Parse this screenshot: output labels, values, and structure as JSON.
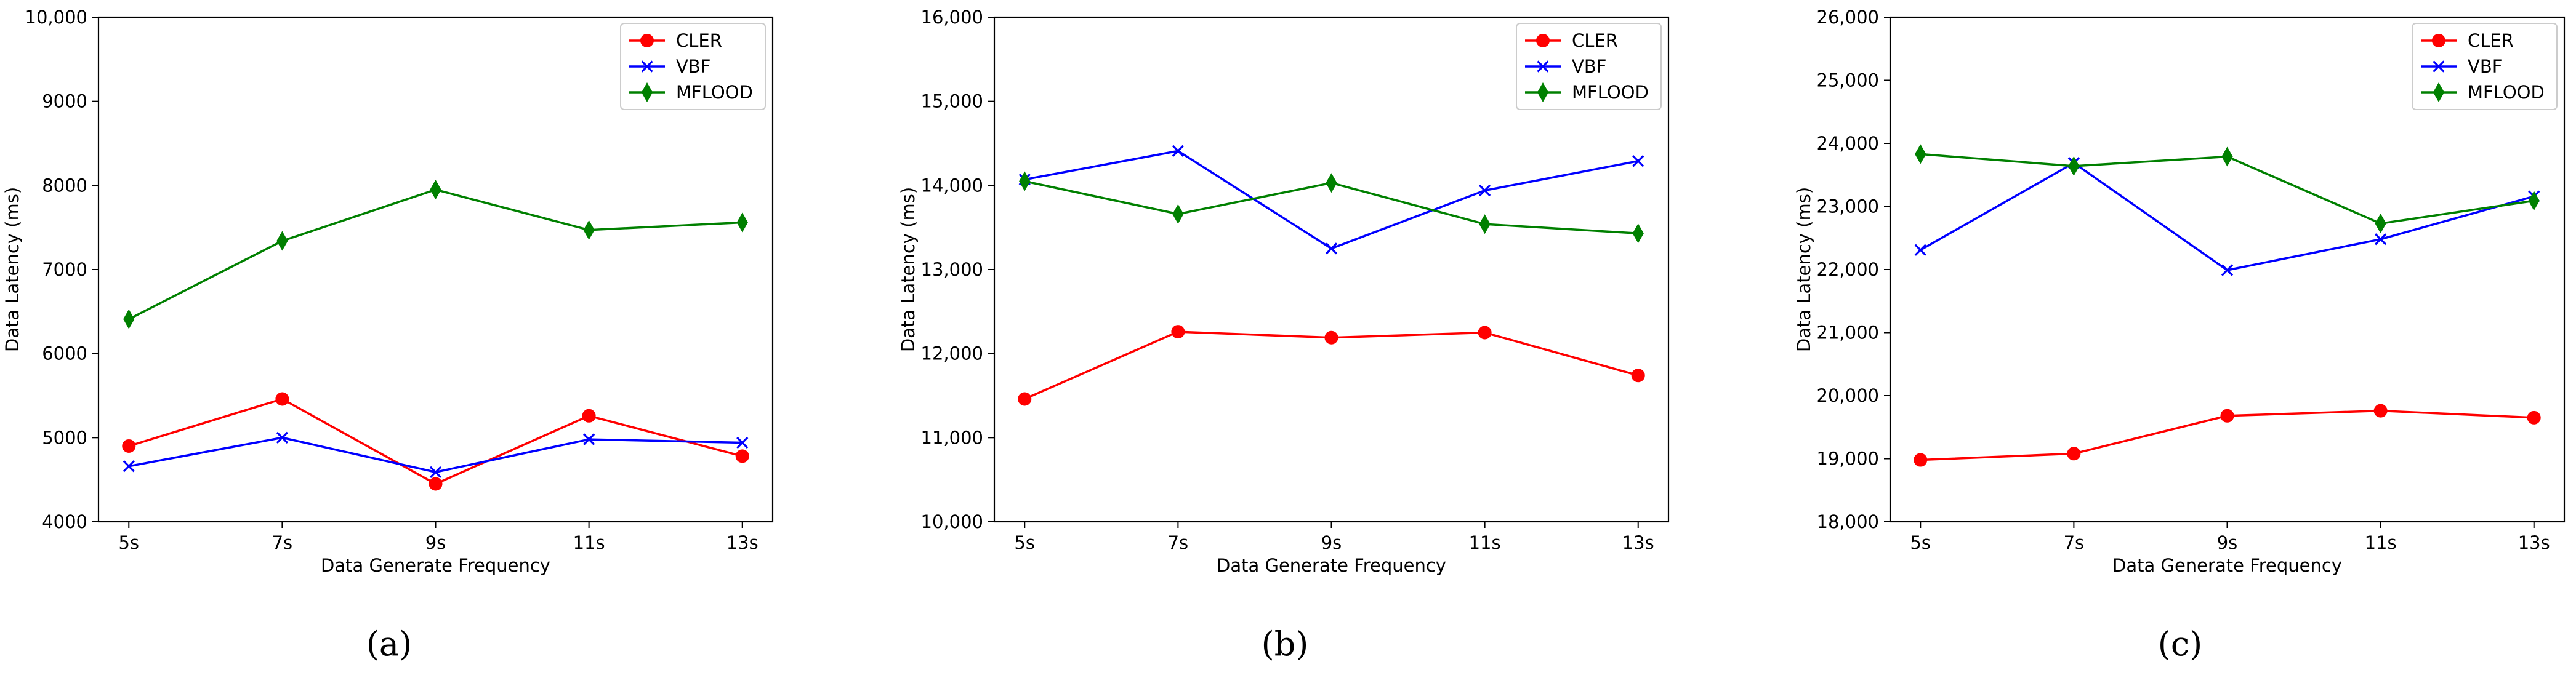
{
  "figure": {
    "series_styles": [
      {
        "name": "CLER",
        "color": "#ff0000",
        "marker": "circle"
      },
      {
        "name": "VBF",
        "color": "#0000ff",
        "marker": "x"
      },
      {
        "name": "MFLOOD",
        "color": "#008000",
        "marker": "thin-diamond"
      }
    ]
  },
  "chart_data": [
    {
      "type": "line",
      "caption": "(a)",
      "xlabel": "Data Generate Frequency",
      "ylabel": "Data Latency (ms)",
      "categories": [
        "5s",
        "7s",
        "9s",
        "11s",
        "13s"
      ],
      "ylim": [
        4000,
        10000
      ],
      "yticks": [
        4000,
        5000,
        6000,
        7000,
        8000,
        9000,
        10000
      ],
      "ytick_labels": [
        "4000",
        "5000",
        "6000",
        "7000",
        "8000",
        "9000",
        "10,000"
      ],
      "legend_position": "top-right",
      "grid": false,
      "series": [
        {
          "name": "CLER",
          "values": [
            4900,
            5460,
            4450,
            5260,
            4780
          ]
        },
        {
          "name": "VBF",
          "values": [
            4660,
            5000,
            4590,
            4980,
            4940
          ]
        },
        {
          "name": "MFLOOD",
          "values": [
            6410,
            7340,
            7950,
            7470,
            7560
          ]
        }
      ]
    },
    {
      "type": "line",
      "caption": "(b)",
      "xlabel": "Data Generate Frequency",
      "ylabel": "Data Latency (ms)",
      "categories": [
        "5s",
        "7s",
        "9s",
        "11s",
        "13s"
      ],
      "ylim": [
        10000,
        16000
      ],
      "yticks": [
        10000,
        11000,
        12000,
        13000,
        14000,
        15000,
        16000
      ],
      "ytick_labels": [
        "10,000",
        "11,000",
        "12,000",
        "13,000",
        "14,000",
        "15,000",
        "16,000"
      ],
      "legend_position": "top-right",
      "grid": false,
      "series": [
        {
          "name": "CLER",
          "values": [
            11460,
            12260,
            12190,
            12250,
            11740
          ]
        },
        {
          "name": "VBF",
          "values": [
            14070,
            14410,
            13250,
            13940,
            14290
          ]
        },
        {
          "name": "MFLOOD",
          "values": [
            14050,
            13660,
            14030,
            13540,
            13430
          ]
        }
      ]
    },
    {
      "type": "line",
      "caption": "(c)",
      "xlabel": "Data Generate Frequency",
      "ylabel": "Data Latency (ms)",
      "categories": [
        "5s",
        "7s",
        "9s",
        "11s",
        "13s"
      ],
      "ylim": [
        18000,
        26000
      ],
      "yticks": [
        18000,
        19000,
        20000,
        21000,
        22000,
        23000,
        24000,
        25000,
        26000
      ],
      "ytick_labels": [
        "18,000",
        "19,000",
        "20,000",
        "21,000",
        "22,000",
        "23,000",
        "24,000",
        "25,000",
        "26,000"
      ],
      "legend_position": "top-right",
      "grid": false,
      "series": [
        {
          "name": "CLER",
          "values": [
            18980,
            19080,
            19680,
            19760,
            19650
          ]
        },
        {
          "name": "VBF",
          "values": [
            22310,
            23690,
            21990,
            22480,
            23160
          ]
        },
        {
          "name": "MFLOOD",
          "values": [
            23830,
            23640,
            23790,
            22730,
            23090
          ]
        }
      ]
    }
  ]
}
